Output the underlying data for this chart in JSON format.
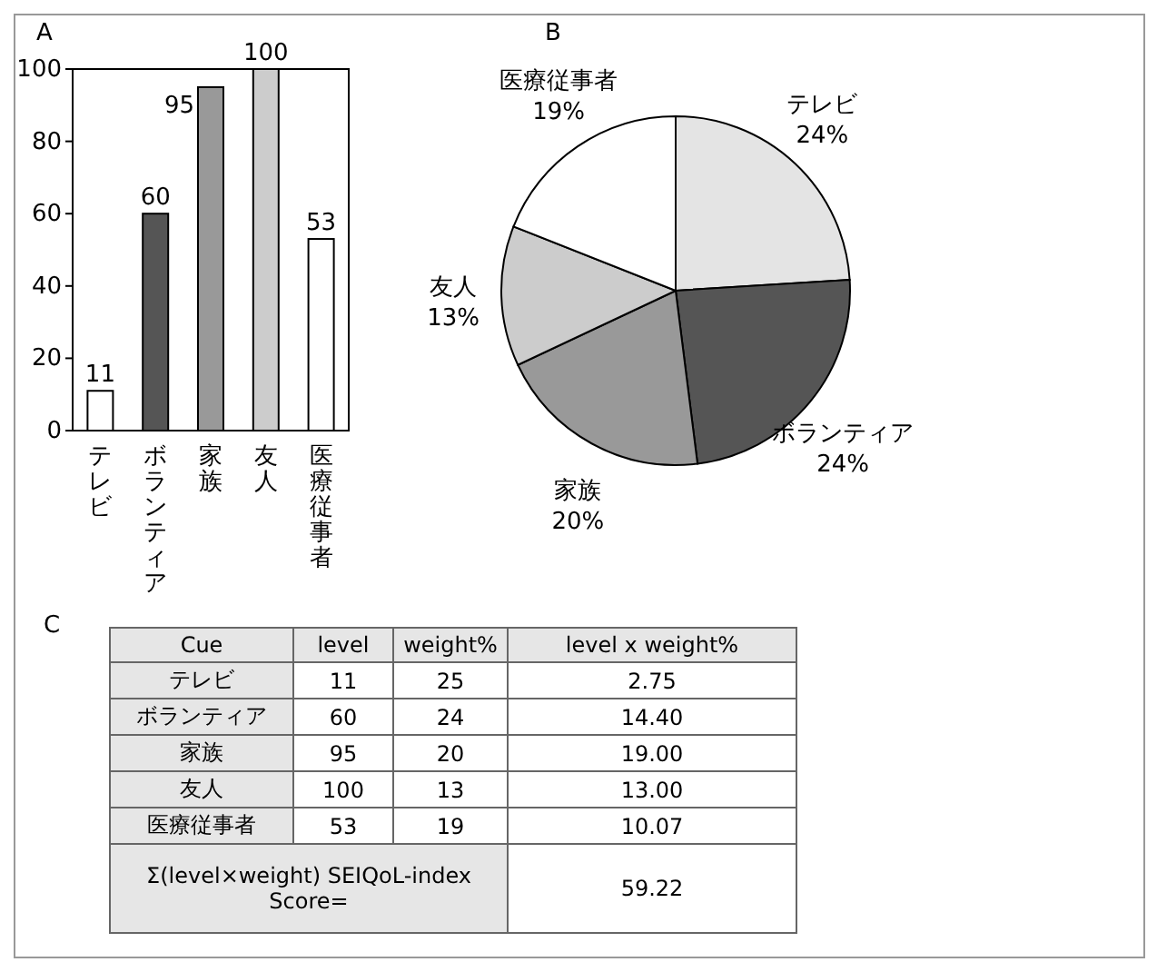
{
  "chart_data": [
    {
      "type": "bar",
      "title": "A",
      "categories": [
        "テレビ",
        "ボランティア",
        "家族",
        "友人",
        "医療従事者"
      ],
      "values": [
        11,
        60,
        95,
        100,
        53
      ],
      "colors": [
        "#ffffff",
        "#555555",
        "#999999",
        "#cccccc",
        "#ffffff"
      ],
      "ylim": [
        0,
        100
      ],
      "yticks": [
        0,
        20,
        40,
        60,
        80,
        100
      ],
      "data_labels": true
    },
    {
      "type": "pie",
      "title": "B",
      "categories": [
        "テレビ",
        "ボランティア",
        "家族",
        "友人",
        "医療従事者"
      ],
      "values": [
        24,
        24,
        20,
        13,
        19
      ],
      "colors": [
        "#e4e4e4",
        "#555555",
        "#999999",
        "#cccccc",
        "#ffffff"
      ],
      "value_labels": [
        "24%",
        "24%",
        "20%",
        "13%",
        "19%"
      ]
    },
    {
      "type": "other",
      "title": "C",
      "annotations": [
        "Cue",
        "level",
        "weight%",
        "level x weight%",
        "テレビ",
        "11",
        "25",
        "2.75",
        "ボランティア",
        "60",
        "24",
        "14.40",
        "家族",
        "95",
        "20",
        "19.00",
        "友人",
        "100",
        "13",
        "13.00",
        "医療従事者",
        "53",
        "19",
        "10.07",
        "Σ(level×weight) SEIQoL-index Score=",
        "59.22"
      ]
    }
  ]
}
